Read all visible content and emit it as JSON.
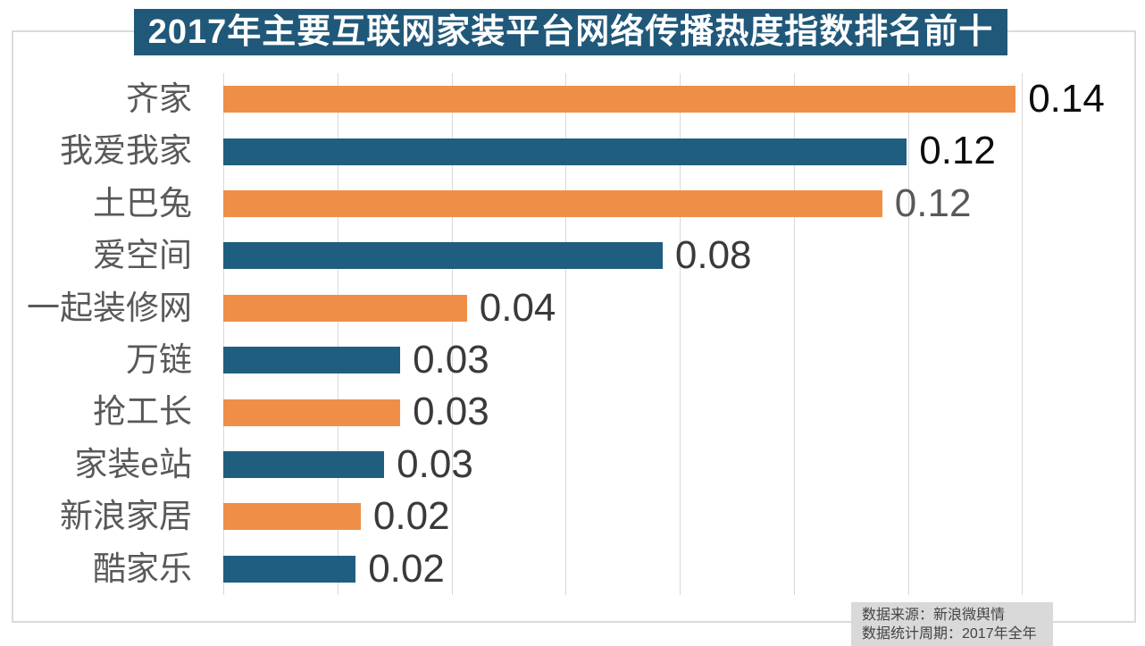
{
  "colors": {
    "orange_bar": "#EF8F47",
    "blue_bar": "#205E80",
    "title_background": "#20587A",
    "gridline": "#D9D9D9",
    "frame_border": "#DBDBDB",
    "category_label": "#595959",
    "source_box_background": "#D9D9D9",
    "source_text": "#444444"
  },
  "chart_data": {
    "type": "bar",
    "orientation": "horizontal",
    "title": "2017年主要互联网家装平台网络传播热度指数排名前十",
    "categories": [
      "齐家",
      "我爱我家",
      "土巴兔",
      "爱空间",
      "一起装修网",
      "万链",
      "抢工长",
      "家装e站",
      "新浪家居",
      "酷家乐"
    ],
    "values": [
      0.14,
      0.12,
      0.12,
      0.08,
      0.04,
      0.03,
      0.03,
      0.03,
      0.02,
      0.02
    ],
    "value_labels": [
      "0.14",
      "0.12",
      "0.12",
      "0.08",
      "0.04",
      "0.03",
      "0.03",
      "0.03",
      "0.02",
      "0.02"
    ],
    "bar_exact_values": [
      0.1389,
      0.1198,
      0.1155,
      0.077,
      0.0427,
      0.031,
      0.031,
      0.0282,
      0.0241,
      0.0232
    ],
    "value_label_colors": [
      "#0D0D0D",
      "#0D0D0D",
      "#595959",
      "#3A3A3A",
      "#3A3A3A",
      "#3A3A3A",
      "#3A3A3A",
      "#3A3A3A",
      "#3A3A3A",
      "#3A3A3A"
    ],
    "bar_color_pattern": [
      "#EF8F47",
      "#205E80"
    ],
    "xlim": [
      0,
      0.16
    ],
    "gridline_step": 0.02,
    "grid": true,
    "legend_position": "none",
    "axis_tick_labels_visible": false,
    "xlabel": "",
    "ylabel": ""
  },
  "footer": {
    "source_line1": "数据来源：新浪微舆情",
    "source_line2": "数据统计周期：2017年全年"
  }
}
